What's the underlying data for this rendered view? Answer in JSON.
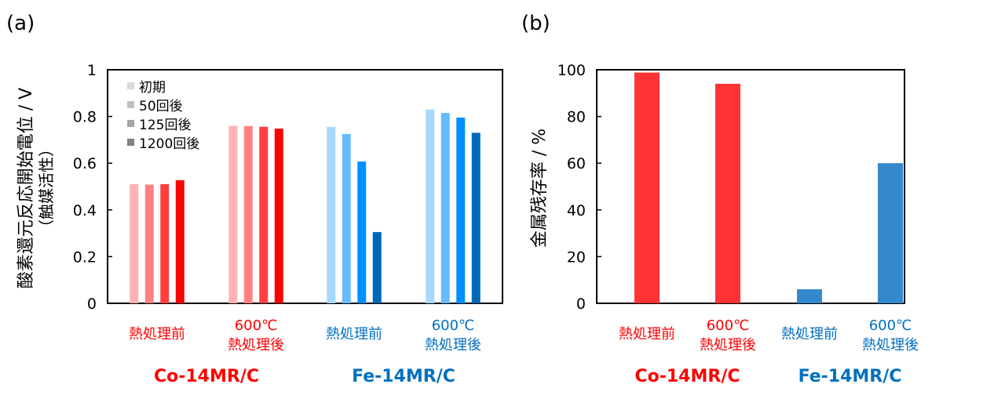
{
  "chart_data": [
    {
      "type": "bar",
      "panel_label": "(a)",
      "ylabel_line1": "酸素還元反応開始電位 / V",
      "ylabel_line2": "（触媒活性）",
      "ylim": [
        0,
        1
      ],
      "yticks": [
        "0",
        "0.2",
        "0.4",
        "0.6",
        "0.8",
        "1"
      ],
      "ytick_values": [
        0,
        0.2,
        0.4,
        0.6,
        0.8,
        1
      ],
      "legend_position": "top-left",
      "legend": [
        {
          "name": "初期",
          "color": "#d9d9d9"
        },
        {
          "name": "50回後",
          "color": "#bfbfbf"
        },
        {
          "name": "125回後",
          "color": "#a6a6a6"
        },
        {
          "name": "1200回後",
          "color": "#808080"
        }
      ],
      "categories": [
        {
          "line1": "熱処理前",
          "line2": "",
          "group": "Co-14MR/C",
          "color": "#ff0000"
        },
        {
          "line1": "600℃",
          "line2": "熱処理後",
          "group": "Co-14MR/C",
          "color": "#ff0000"
        },
        {
          "line1": "熱処理前",
          "line2": "",
          "group": "Fe-14MR/C",
          "color": "#0070c0"
        },
        {
          "line1": "600℃",
          "line2": "熱処理後",
          "group": "Fe-14MR/C",
          "color": "#0070c0"
        }
      ],
      "groups": [
        {
          "name": "Co-14MR/C",
          "color": "#ff0000"
        },
        {
          "name": "Fe-14MR/C",
          "color": "#0070c0"
        }
      ],
      "series": [
        {
          "name": "初期",
          "values": [
            0.51,
            0.76,
            0.755,
            0.83
          ],
          "colors": [
            "#ffb3b3",
            "#ffb3b3",
            "#a6d8ff",
            "#a6d8ff"
          ]
        },
        {
          "name": "50回後",
          "values": [
            0.508,
            0.759,
            0.725,
            0.815
          ],
          "colors": [
            "#ff8080",
            "#ff8080",
            "#66bbff",
            "#66bbff"
          ]
        },
        {
          "name": "125回後",
          "values": [
            0.51,
            0.756,
            0.607,
            0.795
          ],
          "colors": [
            "#ff4040",
            "#ff4040",
            "#0090ff",
            "#0090ff"
          ]
        },
        {
          "name": "1200回後",
          "values": [
            0.527,
            0.748,
            0.305,
            0.73
          ],
          "colors": [
            "#ff0000",
            "#ff0000",
            "#0068b8",
            "#0068b8"
          ]
        }
      ]
    },
    {
      "type": "bar",
      "panel_label": "(b)",
      "ylabel": "金属残存率 / %",
      "ylim": [
        0,
        100
      ],
      "yticks": [
        "0",
        "20",
        "40",
        "60",
        "80",
        "100"
      ],
      "ytick_values": [
        0,
        20,
        40,
        60,
        80,
        100
      ],
      "categories": [
        {
          "line1": "熱処理前",
          "line2": "",
          "group": "Co-14MR/C",
          "color": "#ff0000"
        },
        {
          "line1": "600℃",
          "line2": "熱処理後",
          "group": "Co-14MR/C",
          "color": "#ff0000"
        },
        {
          "line1": "熱処理前",
          "line2": "",
          "group": "Fe-14MR/C",
          "color": "#0070c0"
        },
        {
          "line1": "600℃",
          "line2": "熱処理後",
          "group": "Fe-14MR/C",
          "color": "#0070c0"
        }
      ],
      "groups": [
        {
          "name": "Co-14MR/C",
          "color": "#ff0000"
        },
        {
          "name": "Fe-14MR/C",
          "color": "#0070c0"
        }
      ],
      "values": [
        98.8,
        94,
        6,
        60
      ],
      "bar_colors": [
        "#ff3333",
        "#ff3333",
        "#3389cc",
        "#3389cc"
      ]
    }
  ]
}
